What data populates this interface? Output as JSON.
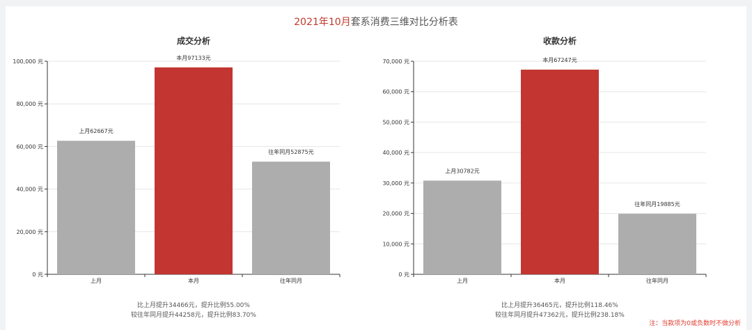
{
  "header": {
    "title_highlight": "2021年10月",
    "title_rest": "套系消费三维对比分析表"
  },
  "colors": {
    "bar_gray": "#adadad",
    "bar_red": "#c23531",
    "axis": "#333333",
    "grid": "#e6e6e6",
    "note": "#e03b2e"
  },
  "chart_data": [
    {
      "type": "bar",
      "title": "成交分析",
      "categories": [
        "上月",
        "本月",
        "往年同月"
      ],
      "values": [
        62667,
        97133,
        52875
      ],
      "data_labels": [
        "上月62667元",
        "本月97133元",
        "往年同月52875元"
      ],
      "highlight_index": 1,
      "ylim": [
        0,
        100000
      ],
      "yticks": [
        0,
        20000,
        40000,
        60000,
        80000,
        100000
      ],
      "ytick_labels": [
        "0 元",
        "20,000 元",
        "40,000 元",
        "60,000 元",
        "80,000 元",
        "100,000 元"
      ],
      "grid": true,
      "summary": [
        "比上月提升34466元，提升比例55.00%",
        "较往年同月提升44258元，提升比例83.70%"
      ]
    },
    {
      "type": "bar",
      "title": "收款分析",
      "categories": [
        "上月",
        "本月",
        "往年同月"
      ],
      "values": [
        30782,
        67247,
        19885
      ],
      "data_labels": [
        "上月30782元",
        "本月67247元",
        "往年同月19885元"
      ],
      "highlight_index": 1,
      "ylim": [
        0,
        70000
      ],
      "yticks": [
        0,
        10000,
        20000,
        30000,
        40000,
        50000,
        60000,
        70000
      ],
      "ytick_labels": [
        "0 元",
        "10,000 元",
        "20,000 元",
        "30,000 元",
        "40,000 元",
        "50,000 元",
        "60,000 元",
        "70,000 元"
      ],
      "grid": true,
      "summary": [
        "比上月提升36465元，提升比例118.46%",
        "较往年同月提升47362元，提升比例238.18%"
      ]
    }
  ],
  "footer": {
    "note": "注：当款项为0或负数时不做分析"
  }
}
